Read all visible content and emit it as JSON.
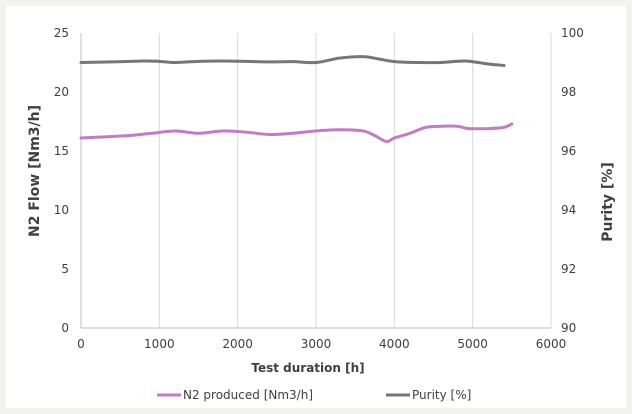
{
  "chart_data": {
    "type": "line",
    "title": "",
    "xlabel": "Test duration [h]",
    "ylabel_left": "N2 Flow [Nm3/h]",
    "ylabel_right": "Purity [%]",
    "xlim": [
      0,
      6000
    ],
    "ylim_left": [
      0,
      25
    ],
    "ylim_right": [
      90,
      100
    ],
    "x_ticks": [
      0,
      1000,
      2000,
      3000,
      4000,
      5000,
      6000
    ],
    "y_ticks_left": [
      0,
      5,
      10,
      15,
      20,
      25
    ],
    "y_ticks_right": [
      90,
      92,
      94,
      96,
      98,
      100
    ],
    "grid": "vertical",
    "legend_position": "bottom",
    "series": [
      {
        "name": "N2 produced [Nm3/h]",
        "axis": "left",
        "color": "#c27bc4",
        "x": [
          0,
          300,
          600,
          900,
          1200,
          1500,
          1800,
          2100,
          2400,
          2700,
          3000,
          3300,
          3600,
          3750,
          3900,
          4000,
          4200,
          4400,
          4600,
          4800,
          4950,
          5200,
          5400,
          5500
        ],
        "y": [
          16.1,
          16.2,
          16.3,
          16.5,
          16.7,
          16.5,
          16.7,
          16.6,
          16.4,
          16.5,
          16.7,
          16.8,
          16.7,
          16.3,
          15.8,
          16.1,
          16.5,
          17.0,
          17.1,
          17.1,
          16.9,
          16.9,
          17.0,
          17.3
        ]
      },
      {
        "name": "Purity [%]",
        "axis": "right",
        "color": "#767676",
        "x": [
          0,
          400,
          800,
          1000,
          1200,
          1500,
          1800,
          2100,
          2400,
          2700,
          3000,
          3300,
          3600,
          3800,
          4000,
          4300,
          4600,
          4900,
          5200,
          5400
        ],
        "y": [
          99.0,
          99.02,
          99.05,
          99.04,
          99.0,
          99.04,
          99.05,
          99.04,
          99.02,
          99.03,
          99.0,
          99.15,
          99.2,
          99.12,
          99.03,
          99.0,
          99.0,
          99.05,
          98.95,
          98.9
        ]
      }
    ]
  }
}
